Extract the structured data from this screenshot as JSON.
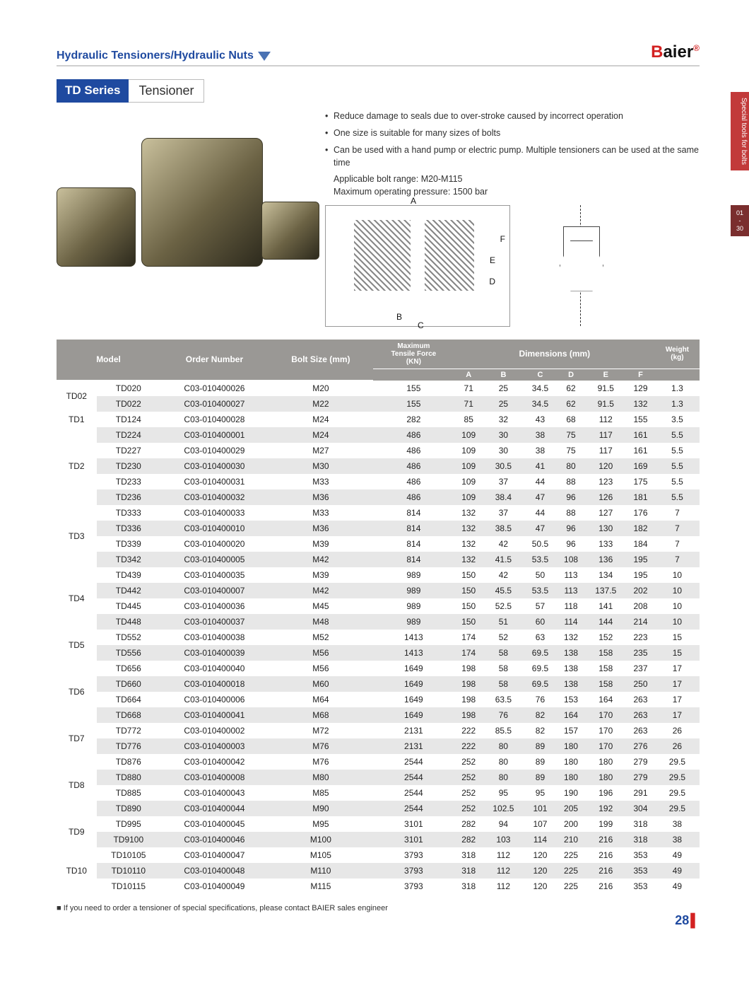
{
  "header": {
    "breadcrumb": "Hydraulic Tensioners/Hydraulic Nuts",
    "brand_first": "B",
    "brand_rest": "aier",
    "brand_reg": "®"
  },
  "series": {
    "tag": "TD Series",
    "label": "Tensioner"
  },
  "bullets": [
    "Reduce damage to seals due to over-stroke caused by incorrect operation",
    "One size is suitable for many sizes of bolts",
    "Can be used with a hand pump or electric pump. Multiple tensioners can be used at the same time"
  ],
  "sub_lines": [
    "Applicable bolt range: M20-M115",
    "Maximum operating pressure: 1500 bar"
  ],
  "diagram_labels": {
    "A": "A",
    "B": "B",
    "C": "C",
    "D": "D",
    "E": "E",
    "F": "F"
  },
  "table": {
    "headers": {
      "model": "Model",
      "order": "Order Number",
      "bolt": "Bolt Size (mm)",
      "force_top": "Maximum",
      "force_mid": "Tensile Force",
      "force_unit": "(KN)",
      "dims": "Dimensions (mm)",
      "A": "A",
      "B": "B",
      "C": "C",
      "D": "D",
      "E": "E",
      "F": "F",
      "weight_top": "Weight",
      "weight_unit": "(kg)"
    },
    "groups": [
      {
        "name": "TD02",
        "rows": [
          [
            "TD020",
            "C03-010400026",
            "M20",
            "155",
            "71",
            "25",
            "34.5",
            "62",
            "91.5",
            "129",
            "1.3"
          ],
          [
            "TD022",
            "C03-010400027",
            "M22",
            "155",
            "71",
            "25",
            "34.5",
            "62",
            "91.5",
            "132",
            "1.3"
          ]
        ]
      },
      {
        "name": "TD1",
        "rows": [
          [
            "TD124",
            "C03-010400028",
            "M24",
            "282",
            "85",
            "32",
            "43",
            "68",
            "112",
            "155",
            "3.5"
          ]
        ]
      },
      {
        "name": "TD2",
        "rows": [
          [
            "TD224",
            "C03-010400001",
            "M24",
            "486",
            "109",
            "30",
            "38",
            "75",
            "117",
            "161",
            "5.5"
          ],
          [
            "TD227",
            "C03-010400029",
            "M27",
            "486",
            "109",
            "30",
            "38",
            "75",
            "117",
            "161",
            "5.5"
          ],
          [
            "TD230",
            "C03-010400030",
            "M30",
            "486",
            "109",
            "30.5",
            "41",
            "80",
            "120",
            "169",
            "5.5"
          ],
          [
            "TD233",
            "C03-010400031",
            "M33",
            "486",
            "109",
            "37",
            "44",
            "88",
            "123",
            "175",
            "5.5"
          ],
          [
            "TD236",
            "C03-010400032",
            "M36",
            "486",
            "109",
            "38.4",
            "47",
            "96",
            "126",
            "181",
            "5.5"
          ]
        ]
      },
      {
        "name": "TD3",
        "rows": [
          [
            "TD333",
            "C03-010400033",
            "M33",
            "814",
            "132",
            "37",
            "44",
            "88",
            "127",
            "176",
            "7"
          ],
          [
            "TD336",
            "C03-010400010",
            "M36",
            "814",
            "132",
            "38.5",
            "47",
            "96",
            "130",
            "182",
            "7"
          ],
          [
            "TD339",
            "C03-010400020",
            "M39",
            "814",
            "132",
            "42",
            "50.5",
            "96",
            "133",
            "184",
            "7"
          ],
          [
            "TD342",
            "C03-010400005",
            "M42",
            "814",
            "132",
            "41.5",
            "53.5",
            "108",
            "136",
            "195",
            "7"
          ]
        ]
      },
      {
        "name": "TD4",
        "rows": [
          [
            "TD439",
            "C03-010400035",
            "M39",
            "989",
            "150",
            "42",
            "50",
            "113",
            "134",
            "195",
            "10"
          ],
          [
            "TD442",
            "C03-010400007",
            "M42",
            "989",
            "150",
            "45.5",
            "53.5",
            "113",
            "137.5",
            "202",
            "10"
          ],
          [
            "TD445",
            "C03-010400036",
            "M45",
            "989",
            "150",
            "52.5",
            "57",
            "118",
            "141",
            "208",
            "10"
          ],
          [
            "TD448",
            "C03-010400037",
            "M48",
            "989",
            "150",
            "51",
            "60",
            "114",
            "144",
            "214",
            "10"
          ]
        ]
      },
      {
        "name": "TD5",
        "rows": [
          [
            "TD552",
            "C03-010400038",
            "M52",
            "1413",
            "174",
            "52",
            "63",
            "132",
            "152",
            "223",
            "15"
          ],
          [
            "TD556",
            "C03-010400039",
            "M56",
            "1413",
            "174",
            "58",
            "69.5",
            "138",
            "158",
            "235",
            "15"
          ]
        ]
      },
      {
        "name": "TD6",
        "rows": [
          [
            "TD656",
            "C03-010400040",
            "M56",
            "1649",
            "198",
            "58",
            "69.5",
            "138",
            "158",
            "237",
            "17"
          ],
          [
            "TD660",
            "C03-010400018",
            "M60",
            "1649",
            "198",
            "58",
            "69.5",
            "138",
            "158",
            "250",
            "17"
          ],
          [
            "TD664",
            "C03-010400006",
            "M64",
            "1649",
            "198",
            "63.5",
            "76",
            "153",
            "164",
            "263",
            "17"
          ],
          [
            "TD668",
            "C03-010400041",
            "M68",
            "1649",
            "198",
            "76",
            "82",
            "164",
            "170",
            "263",
            "17"
          ]
        ]
      },
      {
        "name": "TD7",
        "rows": [
          [
            "TD772",
            "C03-010400002",
            "M72",
            "2131",
            "222",
            "85.5",
            "82",
            "157",
            "170",
            "263",
            "26"
          ],
          [
            "TD776",
            "C03-010400003",
            "M76",
            "2131",
            "222",
            "80",
            "89",
            "180",
            "170",
            "276",
            "26"
          ]
        ]
      },
      {
        "name": "TD8",
        "rows": [
          [
            "TD876",
            "C03-010400042",
            "M76",
            "2544",
            "252",
            "80",
            "89",
            "180",
            "180",
            "279",
            "29.5"
          ],
          [
            "TD880",
            "C03-010400008",
            "M80",
            "2544",
            "252",
            "80",
            "89",
            "180",
            "180",
            "279",
            "29.5"
          ],
          [
            "TD885",
            "C03-010400043",
            "M85",
            "2544",
            "252",
            "95",
            "95",
            "190",
            "196",
            "291",
            "29.5"
          ],
          [
            "TD890",
            "C03-010400044",
            "M90",
            "2544",
            "252",
            "102.5",
            "101",
            "205",
            "192",
            "304",
            "29.5"
          ]
        ]
      },
      {
        "name": "TD9",
        "rows": [
          [
            "TD995",
            "C03-010400045",
            "M95",
            "3101",
            "282",
            "94",
            "107",
            "200",
            "199",
            "318",
            "38"
          ],
          [
            "TD9100",
            "C03-010400046",
            "M100",
            "3101",
            "282",
            "103",
            "114",
            "210",
            "216",
            "318",
            "38"
          ]
        ]
      },
      {
        "name": "TD10",
        "rows": [
          [
            "TD10105",
            "C03-010400047",
            "M105",
            "3793",
            "318",
            "112",
            "120",
            "225",
            "216",
            "353",
            "49"
          ],
          [
            "TD10110",
            "C03-010400048",
            "M110",
            "3793",
            "318",
            "112",
            "120",
            "225",
            "216",
            "353",
            "49"
          ],
          [
            "TD10115",
            "C03-010400049",
            "M115",
            "3793",
            "318",
            "112",
            "120",
            "225",
            "216",
            "353",
            "49"
          ]
        ]
      }
    ]
  },
  "footnote": "If you need to order a tensioner of special specifications, please contact BAIER sales engineer",
  "page_number": "28",
  "side_tab": "Special tools for bolts",
  "side_num_top": "01",
  "side_num_dash": "-",
  "side_num_bot": "30"
}
